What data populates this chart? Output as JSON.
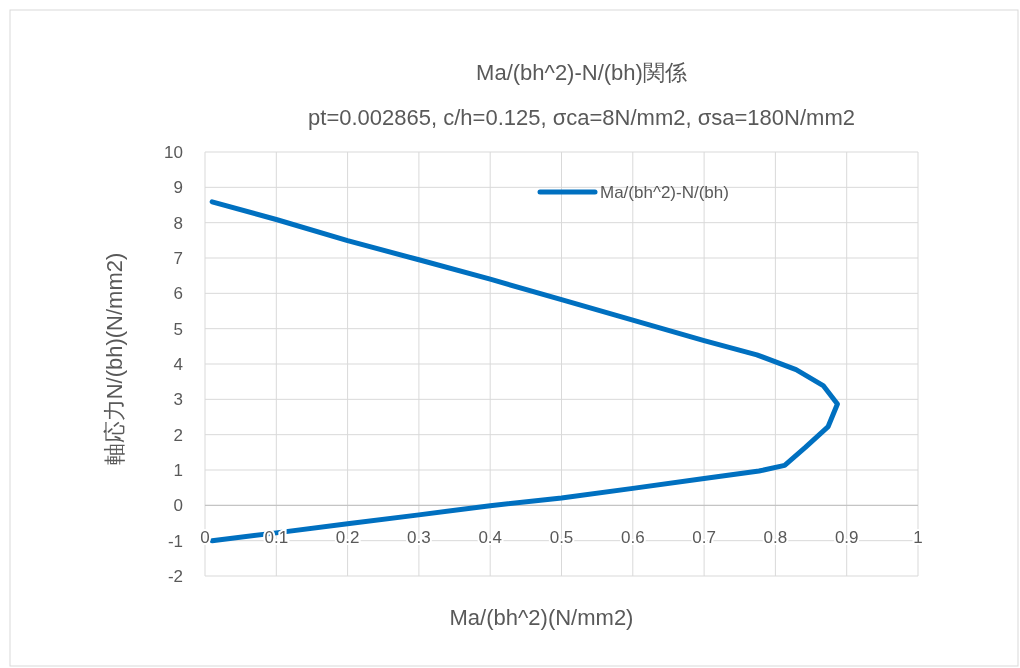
{
  "chart_data": {
    "type": "line",
    "title": "Ma/(bh^2)-N/(bh)関係",
    "subtitle": "pt=0.002865, c/h=0.125, σca=8N/mm2, σsa=180N/mm2",
    "xlabel": "Ma/(bh^2)(N/mm2)",
    "ylabel": "軸応力N/(bh)(N/mm2)",
    "series": [
      {
        "name": "Ma/(bh^2)-N/(bh)",
        "color": "#0070c0",
        "x": [
          0.01,
          0.1,
          0.2,
          0.3,
          0.4,
          0.5,
          0.6,
          0.7,
          0.774,
          0.829,
          0.867,
          0.887,
          0.874,
          0.842,
          0.813,
          0.777,
          0.7,
          0.6,
          0.5,
          0.4,
          0.3,
          0.2,
          0.1,
          0.01
        ],
        "values": [
          8.59,
          8.09,
          7.49,
          6.95,
          6.4,
          5.82,
          5.24,
          4.66,
          4.26,
          3.84,
          3.39,
          2.87,
          2.23,
          1.64,
          1.13,
          0.97,
          0.76,
          0.48,
          0.21,
          -0.01,
          -0.27,
          -0.52,
          -0.78,
          -1.0
        ]
      }
    ],
    "xlim": [
      0,
      1
    ],
    "xticks": [
      0,
      0.1,
      0.2,
      0.3,
      0.4,
      0.5,
      0.6,
      0.7,
      0.8,
      0.9,
      1
    ],
    "ylim": [
      -2,
      10
    ],
    "yticks": [
      -2,
      -1,
      0,
      1,
      2,
      3,
      4,
      5,
      6,
      7,
      8,
      9,
      10
    ],
    "grid": true,
    "legend": "top right",
    "marker": "none",
    "line_style": "solid"
  }
}
